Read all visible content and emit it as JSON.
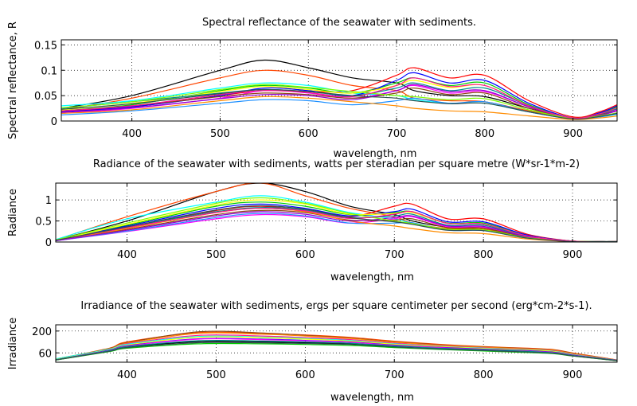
{
  "chart_data": [
    {
      "type": "line",
      "title": "Spectral reflectance of the seawater with sediments.",
      "xlabel": "wavelength, nm",
      "ylabel": "Spectral reflectance, R",
      "xlim": [
        320,
        950
      ],
      "ylim": [
        0,
        0.16
      ],
      "xticks": [
        400,
        500,
        600,
        700,
        800,
        900
      ],
      "yticks": [
        0,
        0.05,
        0.1,
        0.15
      ],
      "ytick_labels": [
        "0",
        "0.05",
        "0.1",
        "0.15"
      ],
      "grid": true,
      "x": [
        320,
        400,
        500,
        550,
        600,
        650,
        700,
        720,
        760,
        800,
        850,
        900,
        930,
        950
      ],
      "series": [
        {
          "color": "#000000",
          "values": [
            0.025,
            0.05,
            0.1,
            0.12,
            0.105,
            0.085,
            0.075,
            0.06,
            0.05,
            0.048,
            0.025,
            0.006,
            0.012,
            0.02
          ]
        },
        {
          "color": "#ff4500",
          "values": [
            0.022,
            0.045,
            0.085,
            0.1,
            0.09,
            0.07,
            0.06,
            0.045,
            0.04,
            0.038,
            0.02,
            0.005,
            0.01,
            0.016
          ]
        },
        {
          "color": "#ff0000",
          "values": [
            0.02,
            0.028,
            0.05,
            0.06,
            0.058,
            0.06,
            0.09,
            0.105,
            0.085,
            0.09,
            0.04,
            0.008,
            0.018,
            0.032
          ]
        },
        {
          "color": "#00ffff",
          "values": [
            0.03,
            0.04,
            0.065,
            0.075,
            0.07,
            0.055,
            0.05,
            0.042,
            0.035,
            0.035,
            0.018,
            0.004,
            0.008,
            0.013
          ]
        },
        {
          "color": "#00cc00",
          "values": [
            0.02,
            0.032,
            0.06,
            0.07,
            0.065,
            0.055,
            0.075,
            0.085,
            0.07,
            0.075,
            0.032,
            0.006,
            0.015,
            0.028
          ]
        },
        {
          "color": "#0000ff",
          "values": [
            0.018,
            0.028,
            0.05,
            0.065,
            0.06,
            0.05,
            0.08,
            0.095,
            0.075,
            0.08,
            0.035,
            0.006,
            0.016,
            0.03
          ]
        },
        {
          "color": "#ff00ff",
          "values": [
            0.015,
            0.025,
            0.045,
            0.06,
            0.055,
            0.045,
            0.06,
            0.07,
            0.055,
            0.058,
            0.028,
            0.005,
            0.012,
            0.022
          ]
        },
        {
          "color": "#ffff00",
          "values": [
            0.022,
            0.035,
            0.058,
            0.068,
            0.062,
            0.055,
            0.07,
            0.08,
            0.066,
            0.07,
            0.03,
            0.006,
            0.014,
            0.025
          ]
        },
        {
          "color": "#008b8b",
          "values": [
            0.025,
            0.038,
            0.055,
            0.062,
            0.058,
            0.05,
            0.065,
            0.075,
            0.06,
            0.065,
            0.03,
            0.005,
            0.013,
            0.024
          ]
        },
        {
          "color": "#8b4513",
          "values": [
            0.02,
            0.03,
            0.048,
            0.055,
            0.052,
            0.045,
            0.055,
            0.065,
            0.052,
            0.055,
            0.025,
            0.005,
            0.012,
            0.02
          ]
        },
        {
          "color": "#1e90ff",
          "values": [
            0.012,
            0.02,
            0.035,
            0.042,
            0.04,
            0.032,
            0.04,
            0.045,
            0.035,
            0.038,
            0.018,
            0.004,
            0.008,
            0.014
          ]
        },
        {
          "color": "#ff8c00",
          "values": [
            0.015,
            0.022,
            0.04,
            0.048,
            0.045,
            0.038,
            0.03,
            0.025,
            0.02,
            0.018,
            0.01,
            0.003,
            0.006,
            0.01
          ]
        },
        {
          "color": "#9400d3",
          "values": [
            0.017,
            0.026,
            0.044,
            0.052,
            0.05,
            0.042,
            0.06,
            0.072,
            0.058,
            0.06,
            0.028,
            0.005,
            0.011,
            0.02
          ]
        },
        {
          "color": "#7cfc00",
          "values": [
            0.026,
            0.038,
            0.062,
            0.072,
            0.066,
            0.058,
            0.05,
            0.048,
            0.042,
            0.044,
            0.022,
            0.005,
            0.01,
            0.016
          ]
        },
        {
          "color": "#ff1493",
          "values": [
            0.02,
            0.03,
            0.052,
            0.06,
            0.056,
            0.048,
            0.07,
            0.085,
            0.068,
            0.07,
            0.03,
            0.006,
            0.014,
            0.026
          ]
        },
        {
          "color": "#2f4f4f",
          "values": [
            0.023,
            0.034,
            0.054,
            0.062,
            0.058,
            0.05,
            0.045,
            0.04,
            0.034,
            0.035,
            0.018,
            0.004,
            0.009,
            0.015
          ]
        }
      ]
    },
    {
      "type": "line",
      "title": "Radiance of the seawater with sediments, watts per steradian per square metre (W*sr-1*m-2)",
      "xlabel": "wavelength, nm",
      "ylabel": "Radiance",
      "xlim": [
        320,
        950
      ],
      "ylim": [
        0,
        1.4
      ],
      "xticks": [
        400,
        500,
        600,
        700,
        800,
        900
      ],
      "yticks": [
        0,
        0.5,
        1
      ],
      "ytick_labels": [
        "0",
        "0.5",
        "1"
      ],
      "grid": true,
      "x": [
        320,
        400,
        500,
        550,
        600,
        650,
        700,
        720,
        760,
        800,
        850,
        900,
        930,
        950
      ],
      "series": [
        {
          "color": "#000000",
          "values": [
            0.05,
            0.5,
            1.2,
            1.4,
            1.2,
            0.85,
            0.65,
            0.5,
            0.35,
            0.3,
            0.12,
            0.02,
            0.01,
            0.01
          ]
        },
        {
          "color": "#ff4500",
          "values": [
            0.05,
            0.6,
            1.2,
            1.4,
            1.1,
            0.8,
            0.6,
            0.45,
            0.32,
            0.3,
            0.11,
            0.02,
            0.01,
            0.01
          ]
        },
        {
          "color": "#ff0000",
          "values": [
            0.04,
            0.35,
            0.75,
            0.85,
            0.75,
            0.6,
            0.85,
            0.9,
            0.55,
            0.55,
            0.18,
            0.02,
            0.01,
            0.01
          ]
        },
        {
          "color": "#00ffff",
          "values": [
            0.06,
            0.55,
            0.95,
            1.1,
            0.95,
            0.7,
            0.55,
            0.45,
            0.3,
            0.28,
            0.1,
            0.02,
            0.01,
            0.01
          ]
        },
        {
          "color": "#00cc00",
          "values": [
            0.04,
            0.4,
            0.85,
            0.95,
            0.85,
            0.65,
            0.7,
            0.72,
            0.45,
            0.45,
            0.15,
            0.02,
            0.01,
            0.01
          ]
        },
        {
          "color": "#0000ff",
          "values": [
            0.04,
            0.38,
            0.8,
            0.9,
            0.8,
            0.62,
            0.72,
            0.78,
            0.48,
            0.48,
            0.16,
            0.02,
            0.01,
            0.01
          ]
        },
        {
          "color": "#ff00ff",
          "values": [
            0.03,
            0.25,
            0.55,
            0.65,
            0.6,
            0.45,
            0.55,
            0.6,
            0.36,
            0.35,
            0.12,
            0.02,
            0.01,
            0.01
          ]
        },
        {
          "color": "#ffff00",
          "values": [
            0.04,
            0.42,
            0.88,
            1.0,
            0.9,
            0.66,
            0.68,
            0.7,
            0.44,
            0.43,
            0.14,
            0.02,
            0.01,
            0.01
          ]
        },
        {
          "color": "#008b8b",
          "values": [
            0.04,
            0.36,
            0.72,
            0.82,
            0.76,
            0.58,
            0.62,
            0.66,
            0.4,
            0.4,
            0.13,
            0.02,
            0.01,
            0.01
          ]
        },
        {
          "color": "#8b4513",
          "values": [
            0.04,
            0.3,
            0.65,
            0.75,
            0.7,
            0.52,
            0.52,
            0.55,
            0.34,
            0.33,
            0.11,
            0.02,
            0.01,
            0.01
          ]
        },
        {
          "color": "#1e90ff",
          "values": [
            0.03,
            0.26,
            0.58,
            0.68,
            0.62,
            0.45,
            0.45,
            0.46,
            0.28,
            0.27,
            0.09,
            0.01,
            0.01,
            0.01
          ]
        },
        {
          "color": "#ff8c00",
          "values": [
            0.04,
            0.32,
            0.7,
            0.8,
            0.72,
            0.5,
            0.38,
            0.32,
            0.22,
            0.2,
            0.07,
            0.01,
            0.01,
            0.01
          ]
        },
        {
          "color": "#9400d3",
          "values": [
            0.03,
            0.28,
            0.62,
            0.72,
            0.66,
            0.5,
            0.58,
            0.62,
            0.38,
            0.37,
            0.12,
            0.02,
            0.01,
            0.01
          ]
        },
        {
          "color": "#7cfc00",
          "values": [
            0.05,
            0.45,
            0.92,
            1.05,
            0.92,
            0.68,
            0.5,
            0.44,
            0.3,
            0.29,
            0.1,
            0.02,
            0.01,
            0.01
          ]
        },
        {
          "color": "#ff1493",
          "values": [
            0.04,
            0.34,
            0.7,
            0.8,
            0.74,
            0.56,
            0.66,
            0.72,
            0.44,
            0.43,
            0.14,
            0.02,
            0.01,
            0.01
          ]
        },
        {
          "color": "#2f4f4f",
          "values": [
            0.04,
            0.36,
            0.76,
            0.86,
            0.78,
            0.58,
            0.48,
            0.42,
            0.28,
            0.27,
            0.09,
            0.01,
            0.01,
            0.01
          ]
        }
      ]
    },
    {
      "type": "line",
      "title": "Irradiance of the seawater with sediments, ergs per square centimeter per second (erg*cm-2*s-1).",
      "xlabel": "wavelength, nm",
      "ylabel": "Irradiance",
      "xlim": [
        320,
        950
      ],
      "ylim": [
        0,
        240
      ],
      "xticks": [
        400,
        500,
        600,
        700,
        800,
        900
      ],
      "yticks": [
        60,
        200
      ],
      "ytick_labels": [
        "60",
        "200"
      ],
      "grid": true,
      "x": [
        320,
        380,
        400,
        480,
        550,
        600,
        650,
        700,
        750,
        800,
        850,
        880,
        900,
        950
      ],
      "series": [
        {
          "color": "#ff4500",
          "values": [
            20,
            90,
            130,
            190,
            185,
            175,
            160,
            135,
            115,
            100,
            90,
            80,
            60,
            15
          ]
        },
        {
          "color": "#8b4513",
          "values": [
            18,
            88,
            125,
            195,
            188,
            172,
            155,
            130,
            112,
            98,
            88,
            78,
            58,
            14
          ]
        },
        {
          "color": "#ff8c00",
          "values": [
            20,
            86,
            122,
            185,
            180,
            168,
            152,
            128,
            110,
            96,
            86,
            76,
            56,
            14
          ]
        },
        {
          "color": "#ff1493",
          "values": [
            18,
            82,
            118,
            172,
            168,
            158,
            145,
            122,
            105,
            92,
            82,
            72,
            52,
            13
          ]
        },
        {
          "color": "#00ffff",
          "values": [
            22,
            84,
            115,
            165,
            162,
            152,
            140,
            118,
            102,
            90,
            80,
            70,
            50,
            13
          ]
        },
        {
          "color": "#ffff00",
          "values": [
            18,
            80,
            110,
            160,
            158,
            148,
            136,
            115,
            100,
            88,
            78,
            68,
            48,
            12
          ]
        },
        {
          "color": "#0000ff",
          "values": [
            16,
            78,
            106,
            150,
            148,
            140,
            130,
            110,
            96,
            84,
            74,
            64,
            46,
            12
          ]
        },
        {
          "color": "#ff00ff",
          "values": [
            16,
            76,
            104,
            148,
            145,
            138,
            128,
            108,
            94,
            82,
            72,
            62,
            44,
            11
          ]
        },
        {
          "color": "#000000",
          "values": [
            15,
            72,
            98,
            132,
            130,
            125,
            118,
            100,
            88,
            78,
            68,
            58,
            42,
            10
          ]
        },
        {
          "color": "#008b8b",
          "values": [
            16,
            74,
            100,
            138,
            136,
            130,
            122,
            104,
            90,
            80,
            70,
            60,
            43,
            11
          ]
        },
        {
          "color": "#00cc00",
          "values": [
            14,
            68,
            90,
            118,
            118,
            114,
            108,
            94,
            82,
            72,
            62,
            54,
            40,
            9
          ]
        },
        {
          "color": "#2f4f4f",
          "values": [
            15,
            70,
            94,
            125,
            124,
            120,
            114,
            98,
            85,
            75,
            65,
            56,
            41,
            10
          ]
        }
      ]
    }
  ]
}
